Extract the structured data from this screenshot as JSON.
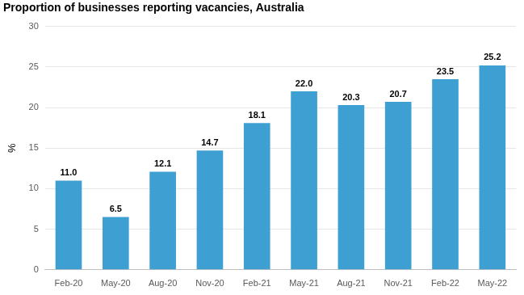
{
  "chart_data": {
    "type": "bar",
    "title": "Proportion of businesses reporting vacancies, Australia",
    "y_label": "%",
    "categories": [
      "Feb-20",
      "May-20",
      "Aug-20",
      "Nov-20",
      "Feb-21",
      "May-21",
      "Aug-21",
      "Nov-21",
      "Feb-22",
      "May-22"
    ],
    "values": [
      11.0,
      6.5,
      12.1,
      14.7,
      18.1,
      22.0,
      20.3,
      20.7,
      23.5,
      25.2
    ],
    "value_labels": [
      "11.0",
      "6.5",
      "12.1",
      "14.7",
      "18.1",
      "22.0",
      "20.3",
      "20.7",
      "23.5",
      "25.2"
    ],
    "color": "#3e9fd3",
    "ylim": [
      0,
      30
    ],
    "yticks": [
      0,
      5,
      10,
      15,
      20,
      25,
      30
    ],
    "grid": true,
    "data_labels": true
  }
}
